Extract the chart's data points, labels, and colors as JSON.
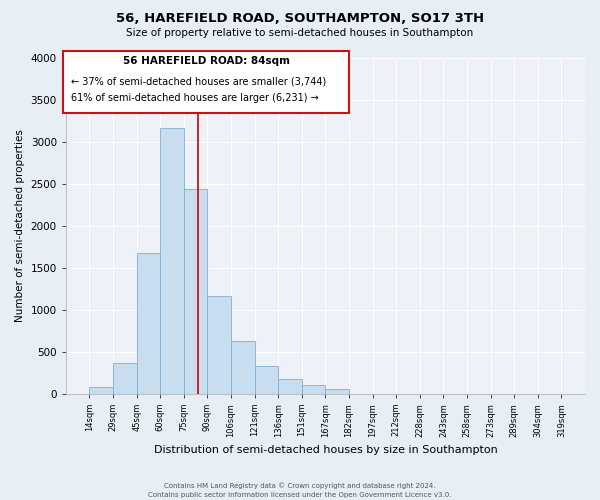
{
  "title": "56, HAREFIELD ROAD, SOUTHAMPTON, SO17 3TH",
  "subtitle": "Size of property relative to semi-detached houses in Southampton",
  "xlabel": "Distribution of semi-detached houses by size in Southampton",
  "ylabel": "Number of semi-detached properties",
  "footer1": "Contains HM Land Registry data © Crown copyright and database right 2024.",
  "footer2": "Contains public sector information licensed under the Open Government Licence v3.0.",
  "annotation_line1": "56 HAREFIELD ROAD: 84sqm",
  "annotation_line2": "← 37% of semi-detached houses are smaller (3,744)",
  "annotation_line3": "61% of semi-detached houses are larger (6,231) →",
  "bar_values": [
    75,
    370,
    1680,
    3160,
    2440,
    1160,
    630,
    330,
    180,
    110,
    55,
    0,
    0,
    0,
    0,
    0,
    0,
    0,
    0,
    0
  ],
  "bin_labels": [
    "14sqm",
    "29sqm",
    "45sqm",
    "60sqm",
    "75sqm",
    "90sqm",
    "106sqm",
    "121sqm",
    "136sqm",
    "151sqm",
    "167sqm",
    "182sqm",
    "197sqm",
    "212sqm",
    "228sqm",
    "243sqm",
    "258sqm",
    "273sqm",
    "289sqm",
    "304sqm",
    "319sqm"
  ],
  "bar_color": "#c8dded",
  "bar_edge_color": "#7bafd4",
  "property_line_color": "#cc0000",
  "ylim": [
    0,
    4000
  ],
  "yticks": [
    0,
    500,
    1000,
    1500,
    2000,
    2500,
    3000,
    3500,
    4000
  ],
  "bg_color": "#e8eef5",
  "plot_bg_color": "#eef2f8",
  "grid_color": "#ffffff",
  "n_bins": 20,
  "property_sqm": 84,
  "bin_edges": [
    14,
    29,
    45,
    60,
    75,
    90,
    106,
    121,
    136,
    151,
    167,
    182,
    197,
    212,
    228,
    243,
    258,
    273,
    289,
    304,
    319
  ]
}
